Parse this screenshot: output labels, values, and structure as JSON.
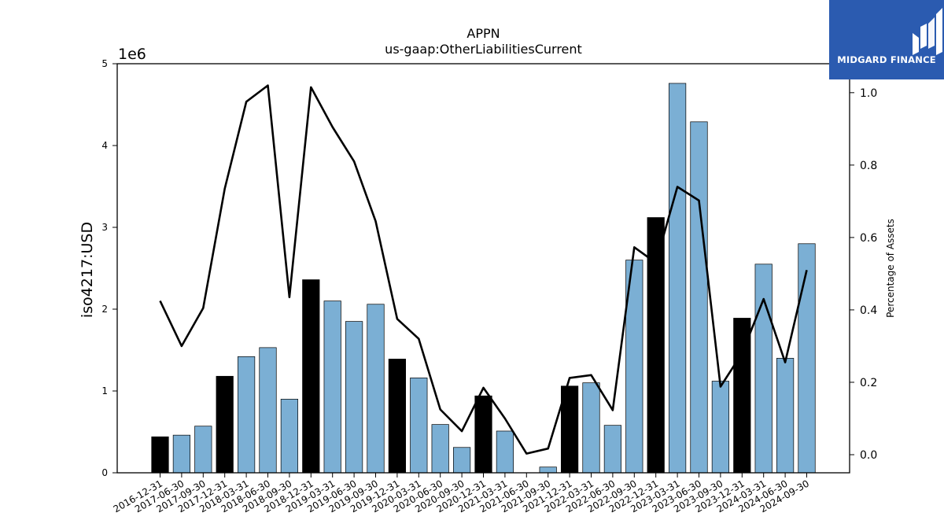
{
  "chart_data": {
    "type": "bar",
    "title": "APPN",
    "subtitle": "us-gaap:OtherLiabilitiesCurrent",
    "ylabel": "iso4217:USD",
    "y2label": "Percentage of Assets",
    "y_offset_label": "1e6",
    "ylim": [
      0,
      5000000
    ],
    "y2lim": [
      -0.05,
      1.08
    ],
    "y_ticks": [
      0,
      1,
      2,
      3,
      4,
      5
    ],
    "y2_ticks": [
      "0.0",
      "0.2",
      "0.4",
      "0.6",
      "0.8",
      "1.0"
    ],
    "categories": [
      "2016-12-31",
      "2017-06-30",
      "2017-09-30",
      "2017-12-31",
      "2018-03-31",
      "2018-06-30",
      "2018-09-30",
      "2018-12-31",
      "2019-03-31",
      "2019-06-30",
      "2019-09-30",
      "2019-12-31",
      "2020-03-31",
      "2020-06-30",
      "2020-09-30",
      "2020-12-31",
      "2021-03-31",
      "2021-06-30",
      "2021-09-30",
      "2021-12-31",
      "2022-03-31",
      "2022-06-30",
      "2022-09-30",
      "2022-12-31",
      "2023-03-31",
      "2023-06-30",
      "2023-09-30",
      "2023-12-31",
      "2024-03-31",
      "2024-06-30",
      "2024-09-30"
    ],
    "series": [
      {
        "type": "bar",
        "values": [
          440000,
          460000,
          570000,
          1180000,
          1420000,
          1530000,
          900000,
          2360000,
          2100000,
          1850000,
          2060000,
          1390000,
          1160000,
          590000,
          310000,
          940000,
          510000,
          0,
          70000,
          1060000,
          1100000,
          580000,
          2600000,
          3120000,
          4760000,
          4290000,
          1120000,
          1890000,
          2550000,
          1400000,
          2800000
        ],
        "year_end": [
          true,
          false,
          false,
          true,
          false,
          false,
          false,
          true,
          false,
          false,
          false,
          true,
          false,
          false,
          false,
          true,
          false,
          false,
          false,
          true,
          false,
          false,
          false,
          true,
          false,
          false,
          false,
          true,
          false,
          false,
          false
        ],
        "colors": {
          "year_end": "#000000",
          "quarter": "#7bafd4"
        }
      },
      {
        "type": "line",
        "axis": "right",
        "color": "#000000",
        "values": [
          0.425,
          0.3,
          0.405,
          0.735,
          0.975,
          1.02,
          0.435,
          1.015,
          0.905,
          0.81,
          0.645,
          0.375,
          0.32,
          0.125,
          0.065,
          0.185,
          0.1,
          0.003,
          0.017,
          0.212,
          0.22,
          0.123,
          0.573,
          0.53,
          0.74,
          0.702,
          0.188,
          0.28,
          0.43,
          0.255,
          0.51
        ]
      }
    ]
  },
  "logo": {
    "text": "MIDGARD FINANCE"
  }
}
